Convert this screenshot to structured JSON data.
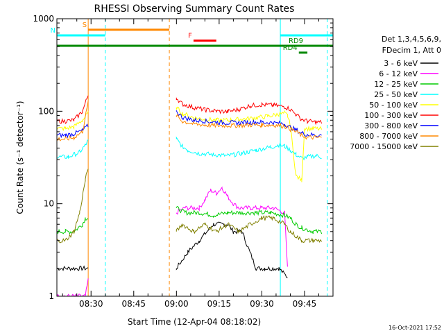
{
  "chart_data": {
    "type": "line",
    "title": "RHESSI Observing Summary Count Rates",
    "xlabel": "Start Time (12-Apr-04 08:18:02)",
    "ylabel": "Count Rate (s⁻¹ detector⁻¹)",
    "y_scale": "log",
    "ylim": [
      1,
      1000
    ],
    "y_ticks": [
      {
        "value": 1,
        "label": "1"
      },
      {
        "value": 10,
        "label": "10"
      },
      {
        "value": 100,
        "label": "100"
      },
      {
        "value": 1000,
        "label": "1000"
      }
    ],
    "x_range_minutes": [
      0,
      97
    ],
    "x_ticks": [
      {
        "minute": 12,
        "label": "08:30"
      },
      {
        "minute": 27,
        "label": "08:45"
      },
      {
        "minute": 42,
        "label": "09:00"
      },
      {
        "minute": 57,
        "label": "09:15"
      },
      {
        "minute": 72,
        "label": "09:30"
      },
      {
        "minute": 87,
        "label": "09:45"
      }
    ],
    "legend_header": [
      "Det 1,3,4,5,6,9,",
      "FDecim 1, Att 0"
    ],
    "legend_position": "right",
    "grid": false,
    "series": [
      {
        "name": "3 - 6 keV",
        "color": "#000000",
        "points": [
          [
            0,
            2
          ],
          [
            11,
            2
          ],
          [
            42,
            2
          ],
          [
            46,
            3
          ],
          [
            50,
            4
          ],
          [
            55,
            6
          ],
          [
            60,
            6
          ],
          [
            62,
            5
          ],
          [
            65,
            5
          ],
          [
            70,
            2
          ],
          [
            73,
            2
          ],
          [
            78,
            2
          ],
          [
            81,
            1.6
          ]
        ]
      },
      {
        "name": "6 - 12 keV",
        "color": "#ff00ff",
        "points": [
          [
            0,
            1
          ],
          [
            10,
            1
          ],
          [
            11,
            1.5
          ],
          [
            42,
            8
          ],
          [
            45,
            9
          ],
          [
            50,
            9
          ],
          [
            52,
            11
          ],
          [
            54,
            14
          ],
          [
            56,
            13
          ],
          [
            58,
            15
          ],
          [
            60,
            12
          ],
          [
            62,
            10
          ],
          [
            64,
            9
          ],
          [
            68,
            9
          ],
          [
            72,
            9
          ],
          [
            76,
            9
          ],
          [
            80,
            8
          ],
          [
            81,
            2
          ]
        ]
      },
      {
        "name": "12 - 25 keV",
        "color": "#00cc00",
        "points": [
          [
            0,
            5
          ],
          [
            3,
            5
          ],
          [
            6,
            5
          ],
          [
            9,
            6
          ],
          [
            10,
            7
          ],
          [
            11,
            7
          ],
          [
            42,
            9
          ],
          [
            45,
            8
          ],
          [
            50,
            8
          ],
          [
            55,
            7.5
          ],
          [
            60,
            8
          ],
          [
            65,
            8
          ],
          [
            70,
            8
          ],
          [
            75,
            8
          ],
          [
            80,
            7.5
          ],
          [
            82,
            7
          ],
          [
            84,
            6
          ],
          [
            86,
            5.5
          ],
          [
            90,
            5
          ],
          [
            93,
            5
          ]
        ]
      },
      {
        "name": "25 - 50 keV",
        "color": "#00ffff",
        "points": [
          [
            0,
            32
          ],
          [
            4,
            32
          ],
          [
            8,
            36
          ],
          [
            10,
            43
          ],
          [
            11,
            48
          ],
          [
            42,
            50
          ],
          [
            44,
            42
          ],
          [
            46,
            38
          ],
          [
            50,
            35
          ],
          [
            55,
            34
          ],
          [
            60,
            33
          ],
          [
            65,
            35
          ],
          [
            70,
            38
          ],
          [
            75,
            41
          ],
          [
            78,
            43
          ],
          [
            80,
            42
          ],
          [
            82,
            38
          ],
          [
            84,
            34
          ],
          [
            86,
            31
          ],
          [
            88,
            32
          ],
          [
            91,
            33
          ],
          [
            93,
            32
          ]
        ]
      },
      {
        "name": "50 - 100 keV",
        "color": "#ffff00",
        "points": [
          [
            0,
            65
          ],
          [
            3,
            65
          ],
          [
            6,
            68
          ],
          [
            9,
            80
          ],
          [
            11,
            95
          ],
          [
            42,
            110
          ],
          [
            44,
            95
          ],
          [
            48,
            85
          ],
          [
            52,
            82
          ],
          [
            56,
            80
          ],
          [
            60,
            80
          ],
          [
            65,
            82
          ],
          [
            70,
            85
          ],
          [
            74,
            88
          ],
          [
            78,
            93
          ],
          [
            80,
            95
          ],
          [
            81,
            90
          ],
          [
            82,
            70
          ],
          [
            84,
            20
          ],
          [
            86,
            18
          ],
          [
            87,
            65
          ],
          [
            90,
            65
          ],
          [
            93,
            64
          ]
        ]
      },
      {
        "name": "100 - 300 keV",
        "color": "#ff0000",
        "points": [
          [
            0,
            78
          ],
          [
            3,
            78
          ],
          [
            6,
            80
          ],
          [
            9,
            100
          ],
          [
            11,
            150
          ],
          [
            42,
            140
          ],
          [
            44,
            120
          ],
          [
            48,
            110
          ],
          [
            52,
            104
          ],
          [
            56,
            100
          ],
          [
            60,
            99
          ],
          [
            64,
            105
          ],
          [
            68,
            115
          ],
          [
            72,
            118
          ],
          [
            76,
            116
          ],
          [
            80,
            112
          ],
          [
            82,
            105
          ],
          [
            84,
            92
          ],
          [
            86,
            82
          ],
          [
            88,
            78
          ],
          [
            91,
            76
          ],
          [
            93,
            76
          ]
        ]
      },
      {
        "name": "300 - 800 keV",
        "color": "#0000ff",
        "points": [
          [
            0,
            55
          ],
          [
            3,
            55
          ],
          [
            6,
            57
          ],
          [
            9,
            62
          ],
          [
            11,
            70
          ],
          [
            42,
            100
          ],
          [
            44,
            86
          ],
          [
            48,
            80
          ],
          [
            52,
            78
          ],
          [
            56,
            76
          ],
          [
            60,
            75
          ],
          [
            64,
            75
          ],
          [
            68,
            76
          ],
          [
            72,
            76
          ],
          [
            76,
            75
          ],
          [
            80,
            73
          ],
          [
            82,
            67
          ],
          [
            84,
            63
          ],
          [
            86,
            58
          ],
          [
            88,
            56
          ],
          [
            91,
            55
          ],
          [
            93,
            55
          ]
        ]
      },
      {
        "name": "800 - 7000 keV",
        "color": "#ff8800",
        "points": [
          [
            0,
            50
          ],
          [
            3,
            50
          ],
          [
            6,
            52
          ],
          [
            9,
            60
          ],
          [
            11,
            125
          ],
          [
            42,
            90
          ],
          [
            44,
            78
          ],
          [
            48,
            73
          ],
          [
            52,
            71
          ],
          [
            56,
            70
          ],
          [
            60,
            70
          ],
          [
            64,
            70
          ],
          [
            68,
            71
          ],
          [
            72,
            71
          ],
          [
            76,
            71
          ],
          [
            80,
            69
          ],
          [
            82,
            64
          ],
          [
            84,
            60
          ],
          [
            86,
            55
          ],
          [
            88,
            52
          ],
          [
            91,
            52
          ],
          [
            93,
            52
          ]
        ]
      },
      {
        "name": "7000 - 15000 keV",
        "color": "#808000",
        "points": [
          [
            0,
            4
          ],
          [
            3,
            4
          ],
          [
            6,
            5
          ],
          [
            8,
            8
          ],
          [
            10,
            18
          ],
          [
            11,
            25
          ],
          [
            42,
            5
          ],
          [
            44,
            6
          ],
          [
            48,
            5
          ],
          [
            52,
            6
          ],
          [
            56,
            5
          ],
          [
            60,
            6
          ],
          [
            64,
            5
          ],
          [
            68,
            6
          ],
          [
            72,
            7
          ],
          [
            76,
            7
          ],
          [
            80,
            6
          ],
          [
            82,
            5
          ],
          [
            86,
            4
          ],
          [
            90,
            4
          ],
          [
            93,
            4
          ]
        ]
      }
    ],
    "state_bars": [
      {
        "label": "S",
        "color": "#ff8800",
        "start": 11,
        "end": 39.5,
        "value": 760
      },
      {
        "label": "N",
        "color": "#00ffff",
        "start": 0,
        "end": 17,
        "value": 660
      },
      {
        "label": "F",
        "color": "#ff0000",
        "start": 48,
        "end": 56,
        "value": 580
      },
      {
        "label": "",
        "color": "#008800",
        "start": 0,
        "end": 97,
        "value": 510
      },
      {
        "label": "RD4",
        "color": "#008800",
        "start": 85,
        "end": 88,
        "value": 430
      },
      {
        "label": "RD9",
        "color": "#008800",
        "start": 87,
        "end": 97,
        "value": 510
      },
      {
        "label": "",
        "color": "#00ffff",
        "start": 78.5,
        "end": 97,
        "value": 660
      }
    ],
    "vertical_markers": [
      {
        "minute": 11,
        "color": "#ff8800",
        "style": "solid"
      },
      {
        "minute": 17,
        "color": "#00ffff",
        "style": "dashed"
      },
      {
        "minute": 39.5,
        "color": "#ff8800",
        "style": "dashed"
      },
      {
        "minute": 78.5,
        "color": "#00ffff",
        "style": "solid"
      },
      {
        "minute": 95,
        "color": "#00ffff",
        "style": "dashed"
      }
    ],
    "footer_timestamp": "16-Oct-2021 17:52"
  }
}
